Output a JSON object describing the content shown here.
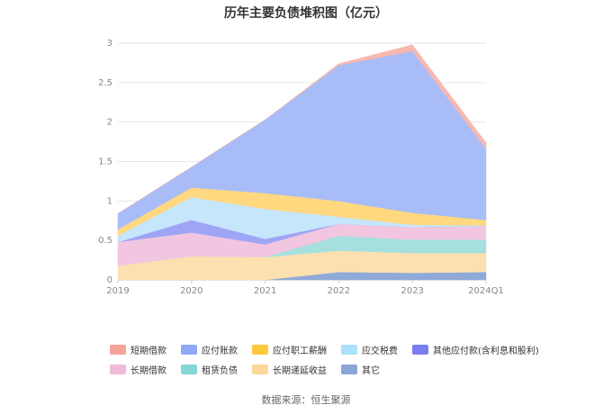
{
  "title": "历年主要负债堆积图（亿元）",
  "source_label": "数据来源：恒生聚源",
  "chart_data": {
    "type": "area",
    "stacked": true,
    "categories": [
      "2019",
      "2020",
      "2021",
      "2022",
      "2023",
      "2024Q1"
    ],
    "ylim": [
      0,
      3
    ],
    "yticks": [
      0,
      0.5,
      1,
      1.5,
      2,
      2.5,
      3
    ],
    "grid": true,
    "legend_position": "bottom",
    "series": [
      {
        "name": "其它",
        "color": "#8fa9d8",
        "values": [
          0.0,
          0.0,
          0.0,
          0.1,
          0.09,
          0.1
        ]
      },
      {
        "name": "长期递延收益",
        "color": "#fde0b0",
        "values": [
          0.18,
          0.3,
          0.29,
          0.27,
          0.25,
          0.24
        ]
      },
      {
        "name": "租赁负债",
        "color": "#a6e0de",
        "values": [
          0.0,
          0.0,
          0.0,
          0.19,
          0.17,
          0.17
        ]
      },
      {
        "name": "长期借款",
        "color": "#f2c6e0",
        "values": [
          0.3,
          0.3,
          0.16,
          0.15,
          0.16,
          0.17
        ]
      },
      {
        "name": "其他应付款(含利息和股利)",
        "color": "#9fa5f5",
        "values": [
          0.0,
          0.16,
          0.07,
          0.0,
          0.0,
          0.0
        ]
      },
      {
        "name": "应交税费",
        "color": "#c5e6fb",
        "values": [
          0.08,
          0.29,
          0.38,
          0.09,
          0.03,
          0.01
        ]
      },
      {
        "name": "应付职工薪酬",
        "color": "#ffd880",
        "values": [
          0.08,
          0.12,
          0.2,
          0.2,
          0.15,
          0.07
        ]
      },
      {
        "name": "应付账款",
        "color": "#a8bcf8",
        "values": [
          0.2,
          0.26,
          0.93,
          1.72,
          2.05,
          0.9
        ]
      },
      {
        "name": "短期借款",
        "color": "#f6b8b0",
        "values": [
          0.0,
          0.0,
          0.0,
          0.02,
          0.08,
          0.08
        ]
      }
    ]
  },
  "legend": {
    "row1": [
      {
        "name": "短期借款",
        "color": "#f6a39a"
      },
      {
        "name": "应付账款",
        "color": "#8fa8f8"
      },
      {
        "name": "应付职工薪酬",
        "color": "#ffc93e"
      },
      {
        "name": "应交税费",
        "color": "#ace0fb"
      },
      {
        "name": "其他应付款(含利息和股利)",
        "color": "#7b7ef0"
      }
    ],
    "row2": [
      {
        "name": "长期借款",
        "color": "#efbadb"
      },
      {
        "name": "租赁负债",
        "color": "#86d6d3"
      },
      {
        "name": "长期递延收益",
        "color": "#fdd89a"
      },
      {
        "name": "其它",
        "color": "#8aa6d8"
      }
    ]
  }
}
